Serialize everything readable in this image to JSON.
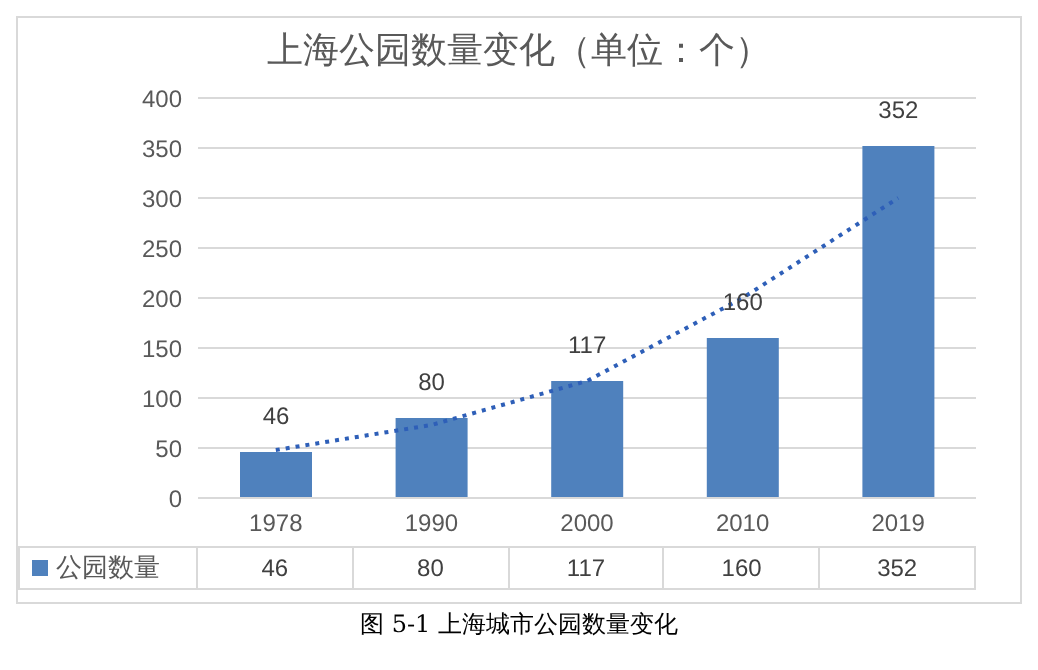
{
  "chart_data": {
    "type": "bar",
    "title": "上海公园数量变化（单位：个）",
    "categories": [
      "1978",
      "1990",
      "2000",
      "2010",
      "2019"
    ],
    "series": [
      {
        "name": "公园数量",
        "color": "#4f81bd",
        "values": [
          46,
          80,
          117,
          160,
          352
        ],
        "value_labels": [
          "46",
          "80",
          "117",
          "160",
          "352"
        ]
      },
      {
        "type": "line",
        "values": [
          48,
          73,
          117,
          200,
          300
        ],
        "color": "#2e5fb8",
        "line_style": "dotted",
        "marker": "none"
      }
    ],
    "ylim": [
      0,
      400
    ],
    "yticks": [
      0,
      50,
      100,
      150,
      200,
      250,
      300,
      350,
      400
    ],
    "grid": "y",
    "legend": "bottom",
    "annotations": [
      "图 5-1  上海城市公园数量变化"
    ]
  }
}
